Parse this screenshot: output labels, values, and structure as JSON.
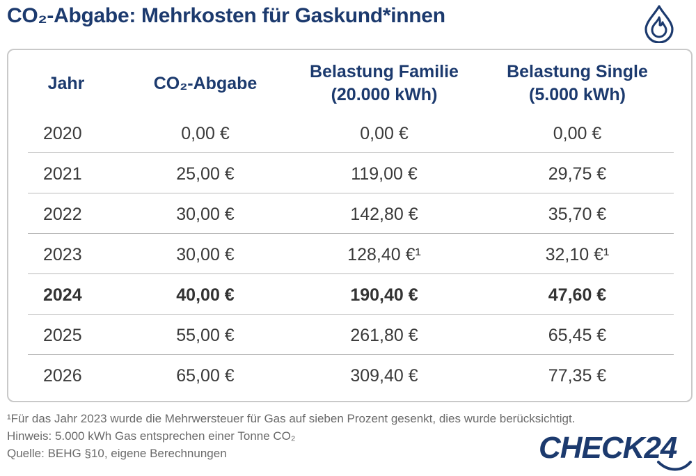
{
  "title": "CO₂-Abgabe: Mehrkosten für Gaskund*innen",
  "icons": {
    "header_icon": "gas-flame-drop-icon",
    "brand_color": "#1c3a6e"
  },
  "table": {
    "headers": [
      "Jahr",
      "CO₂-Abgabe",
      "Belastung Familie\n(20.000 kWh)",
      "Belastung Single\n(5.000 kWh)"
    ],
    "rows": [
      {
        "year": "2020",
        "co2": "0,00 €",
        "family": "0,00 €",
        "single": "0,00 €",
        "bold": false
      },
      {
        "year": "2021",
        "co2": "25,00 €",
        "family": "119,00 €",
        "single": "29,75 €",
        "bold": false
      },
      {
        "year": "2022",
        "co2": "30,00 €",
        "family": "142,80 €",
        "single": "35,70 €",
        "bold": false
      },
      {
        "year": "2023",
        "co2": "30,00 €",
        "family": "128,40 €¹",
        "single": "32,10 €¹",
        "bold": false
      },
      {
        "year": "2024",
        "co2": "40,00 €",
        "family": "190,40 €",
        "single": "47,60 €",
        "bold": true
      },
      {
        "year": "2025",
        "co2": "55,00 €",
        "family": "261,80 €",
        "single": "65,45 €",
        "bold": false
      },
      {
        "year": "2026",
        "co2": "65,00 €",
        "family": "309,40 €",
        "single": "77,35 €",
        "bold": false
      }
    ]
  },
  "footnotes": {
    "note1": "¹Für das Jahr 2023 wurde die Mehrwersteuer für Gas auf sieben Prozent gesenkt, dies wurde berücksichtigt.",
    "hint": "Hinweis: 5.000 kWh Gas entsprechen einer Tonne CO₂",
    "source": "Quelle: BEHG §10, eigene Berechnungen"
  },
  "logo": {
    "text": "CHECK24",
    "color": "#1c3a6e"
  }
}
